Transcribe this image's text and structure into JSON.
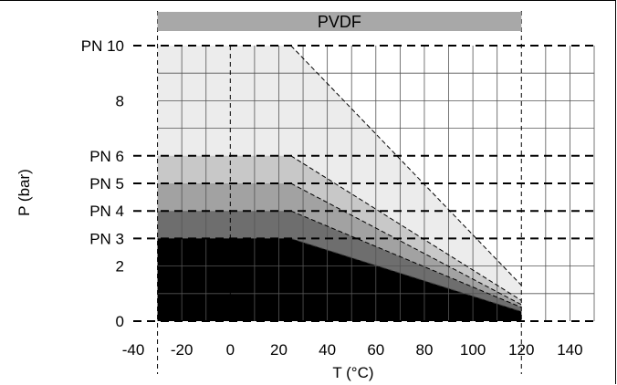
{
  "chart_data": {
    "type": "area",
    "title": "PVDF",
    "xlabel": "T (°C)",
    "ylabel": "P (bar)",
    "xlim": [
      -40,
      150
    ],
    "ylim": [
      0,
      10
    ],
    "x_ticks": [
      -40,
      -20,
      0,
      20,
      40,
      60,
      80,
      100,
      120,
      140
    ],
    "x_minor_ticks": [
      -30,
      -10,
      10,
      30,
      50,
      70,
      90,
      110,
      130,
      150
    ],
    "y_ticks": [
      {
        "value": 10,
        "label": "PN 10"
      },
      {
        "value": 8,
        "label": "8"
      },
      {
        "value": 6,
        "label": "PN 6"
      },
      {
        "value": 5,
        "label": "PN 5"
      },
      {
        "value": 4,
        "label": "PN 4"
      },
      {
        "value": 3,
        "label": "PN 3"
      },
      {
        "value": 2,
        "label": "2"
      },
      {
        "value": 0,
        "label": "0"
      }
    ],
    "temperature_range": [
      -30,
      120
    ],
    "grid": true,
    "series": [
      {
        "rating": "PN 10",
        "color": "#ececec",
        "points": [
          [
            -30,
            10
          ],
          [
            25,
            10
          ],
          [
            120,
            1.3
          ]
        ]
      },
      {
        "rating": "PN 6",
        "color": "#c8c8c8",
        "points": [
          [
            -30,
            6
          ],
          [
            25,
            6
          ],
          [
            120,
            0.75
          ]
        ]
      },
      {
        "rating": "PN 5",
        "color": "#a2a2a2",
        "points": [
          [
            -30,
            5
          ],
          [
            25,
            5
          ],
          [
            120,
            0.6
          ]
        ]
      },
      {
        "rating": "PN 4",
        "color": "#6e6e6e",
        "points": [
          [
            -30,
            4
          ],
          [
            25,
            4
          ],
          [
            120,
            0.5
          ]
        ]
      },
      {
        "rating": "PN 3",
        "color": "#000000",
        "points": [
          [
            -30,
            3
          ],
          [
            25,
            3
          ],
          [
            120,
            0.35
          ]
        ]
      }
    ],
    "colors": {
      "grid": "#555555",
      "banner": "#a8a8a8",
      "dash": "#000000"
    }
  }
}
